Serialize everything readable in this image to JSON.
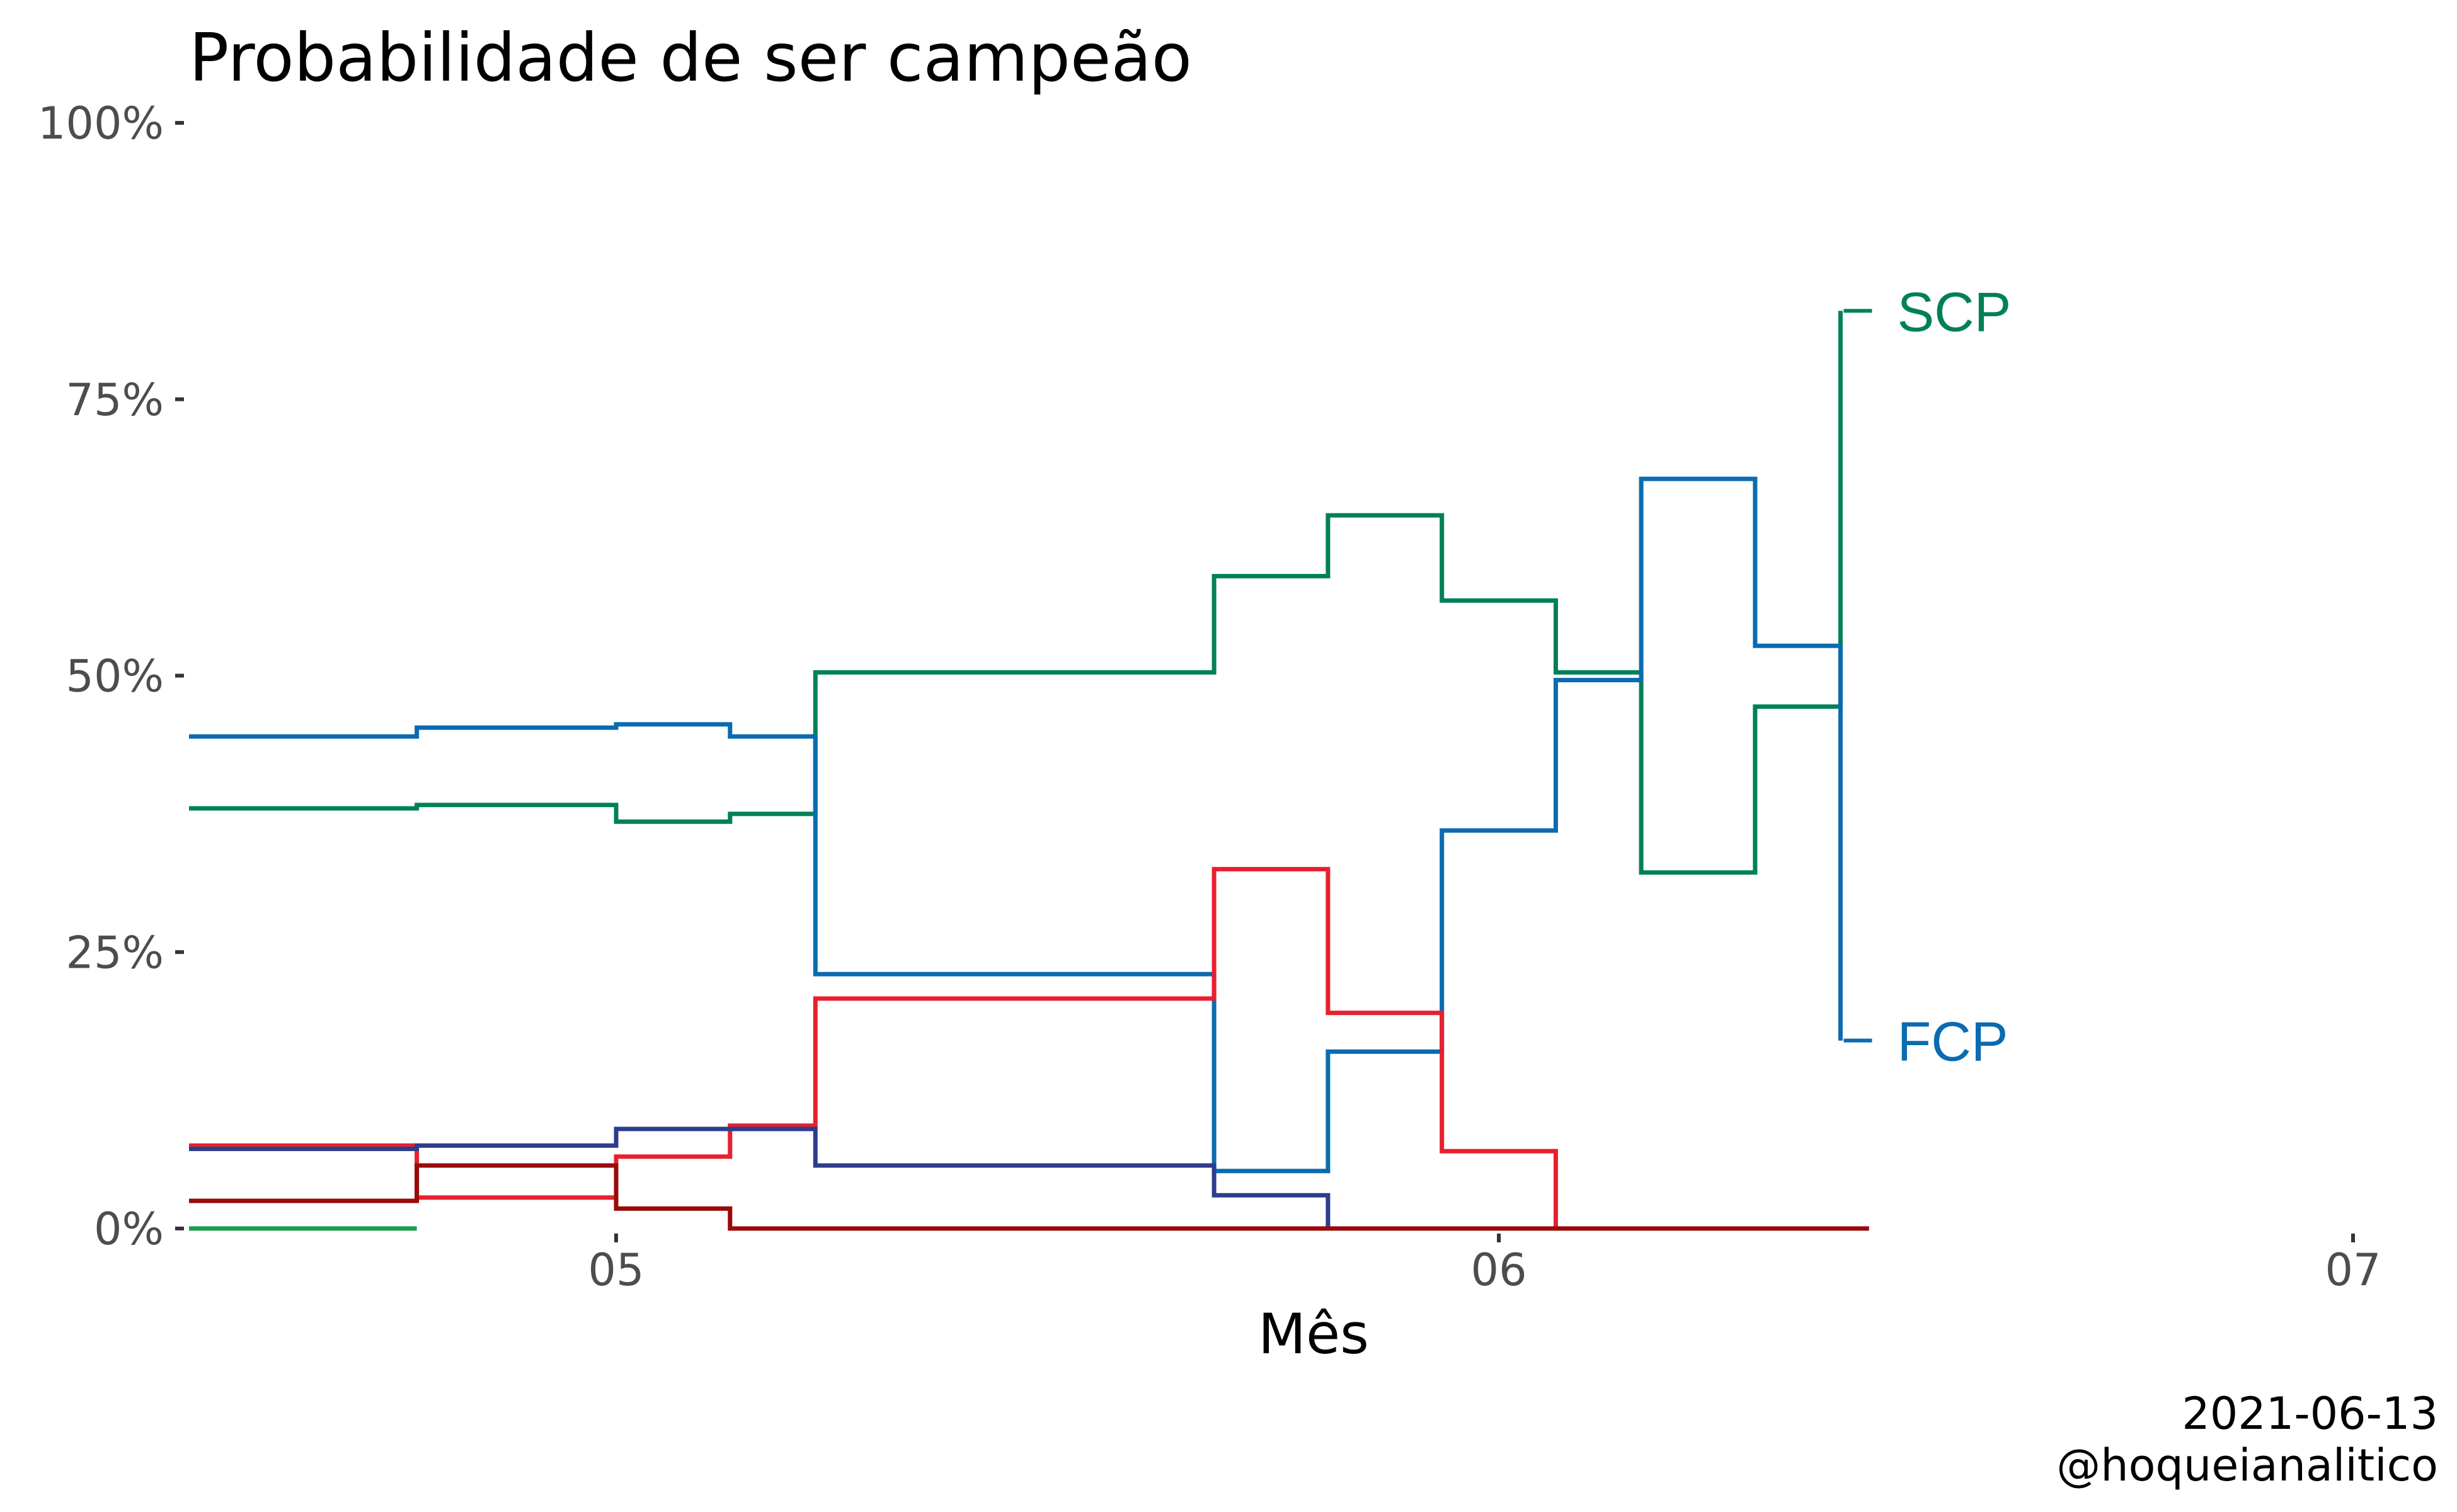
{
  "chart_data": {
    "type": "line",
    "step": "hv",
    "title": "Probabilidade de ser campeão",
    "xlabel": "Mês",
    "ylabel": "",
    "caption": [
      "2021-06-13",
      "@hoqueianalitico"
    ],
    "x_axis": {
      "unit": "date",
      "range": [
        "2021-04-16",
        "2021-07-01"
      ],
      "ticks": [
        {
          "value": "2021-05-01",
          "label": "05"
        },
        {
          "value": "2021-06-01",
          "label": "06"
        },
        {
          "value": "2021-07-01",
          "label": "07"
        }
      ]
    },
    "y_axis": {
      "range": [
        0,
        100
      ],
      "unit": "%",
      "ticks": [
        {
          "value": 0,
          "label": "0%"
        },
        {
          "value": 25,
          "label": "25%"
        },
        {
          "value": 50,
          "label": "50%"
        },
        {
          "value": 75,
          "label": "75%"
        },
        {
          "value": 100,
          "label": "100%"
        }
      ]
    },
    "grid": false,
    "legend": "none",
    "series": [
      {
        "name": "SCP",
        "color": "#00805a",
        "label": "SCP",
        "points": [
          [
            "2021-04-16",
            38
          ],
          [
            "2021-04-24",
            38.3
          ],
          [
            "2021-05-01",
            36.8
          ],
          [
            "2021-05-05",
            37.5
          ],
          [
            "2021-05-08",
            50.3
          ],
          [
            "2021-05-22",
            59
          ],
          [
            "2021-05-26",
            64.5
          ],
          [
            "2021-05-30",
            56.8
          ],
          [
            "2021-06-03",
            50.3
          ],
          [
            "2021-06-06",
            32.2
          ],
          [
            "2021-06-10",
            47.2
          ],
          [
            "2021-06-13",
            83
          ]
        ]
      },
      {
        "name": "FCP",
        "color": "#0a6bb0",
        "label": "FCP",
        "points": [
          [
            "2021-04-16",
            44.5
          ],
          [
            "2021-04-24",
            45.3
          ],
          [
            "2021-05-01",
            45.6
          ],
          [
            "2021-05-05",
            44.5
          ],
          [
            "2021-05-08",
            23
          ],
          [
            "2021-05-22",
            5.2
          ],
          [
            "2021-05-26",
            16
          ],
          [
            "2021-05-30",
            36
          ],
          [
            "2021-06-03",
            49.6
          ],
          [
            "2021-06-06",
            67.8
          ],
          [
            "2021-06-10",
            52.7
          ],
          [
            "2021-06-13",
            17
          ]
        ]
      },
      {
        "color": "#e8202e",
        "points": [
          [
            "2021-04-16",
            7.5
          ],
          [
            "2021-04-24",
            2.8
          ],
          [
            "2021-05-01",
            6.5
          ],
          [
            "2021-05-05",
            9.3
          ],
          [
            "2021-05-08",
            20.8
          ],
          [
            "2021-05-22",
            32.5
          ],
          [
            "2021-05-26",
            19.5
          ],
          [
            "2021-05-30",
            7
          ],
          [
            "2021-06-03",
            0
          ],
          [
            "2021-06-14",
            0
          ]
        ]
      },
      {
        "color": "#2d3d8c",
        "points": [
          [
            "2021-04-16",
            7.2
          ],
          [
            "2021-04-24",
            7.5
          ],
          [
            "2021-05-01",
            9
          ],
          [
            "2021-05-08",
            5.7
          ],
          [
            "2021-05-22",
            3
          ],
          [
            "2021-05-26",
            0
          ],
          [
            "2021-06-14",
            0
          ]
        ]
      },
      {
        "color": "#9a0a0a",
        "points": [
          [
            "2021-04-16",
            2.5
          ],
          [
            "2021-04-24",
            5.7
          ],
          [
            "2021-05-01",
            1.8
          ],
          [
            "2021-05-05",
            0
          ],
          [
            "2021-06-14",
            0
          ]
        ]
      },
      {
        "color": "#1aa04a",
        "points": [
          [
            "2021-04-16",
            0
          ],
          [
            "2021-04-24",
            0
          ]
        ]
      }
    ]
  }
}
